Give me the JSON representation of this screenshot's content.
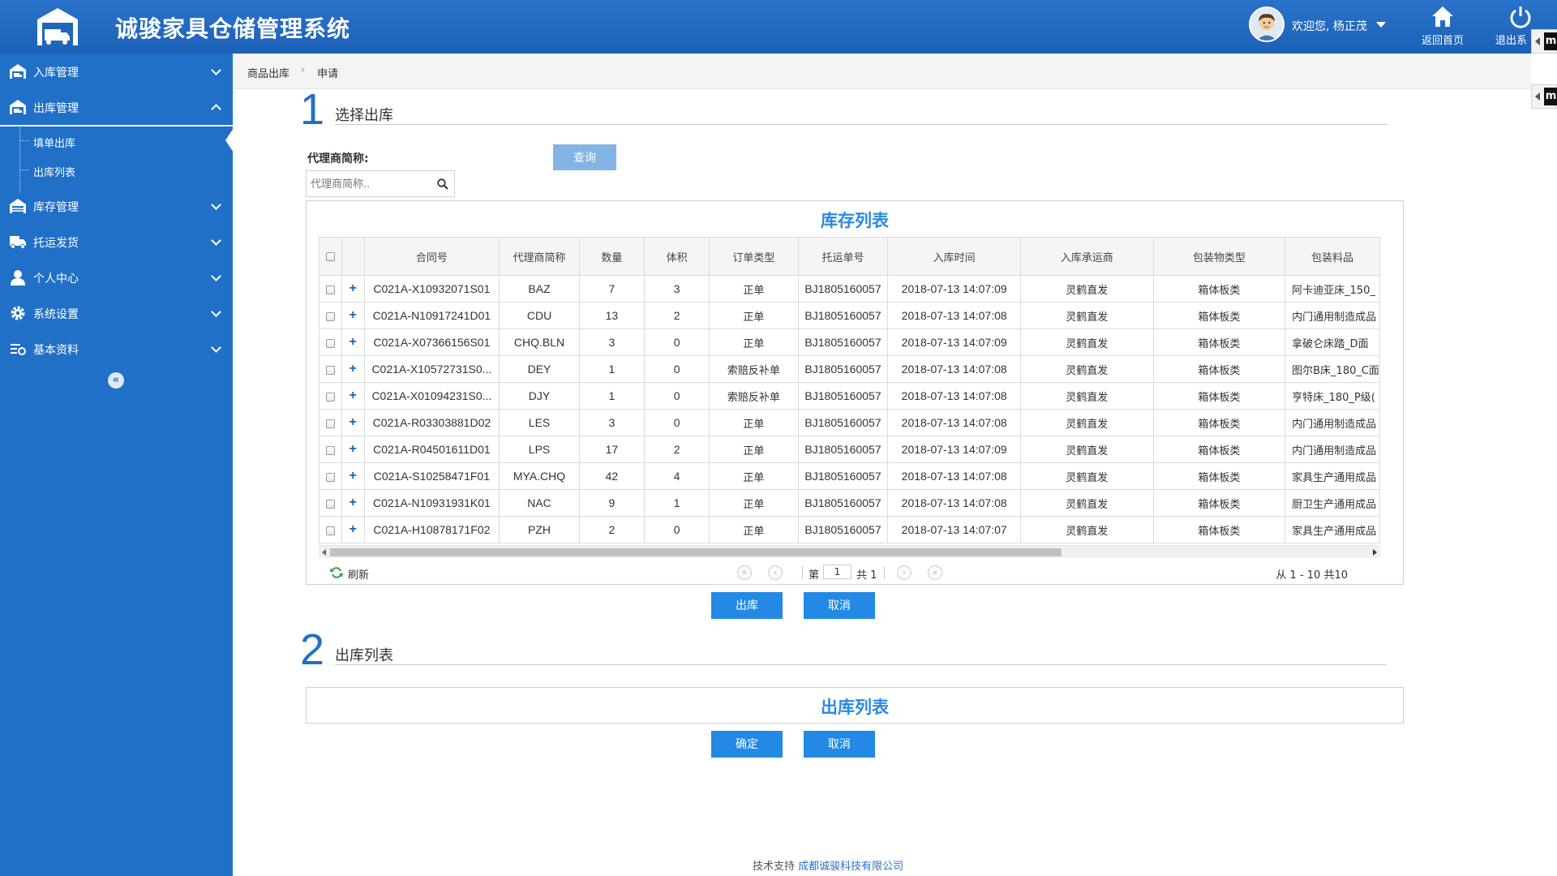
{
  "header": {
    "app_title": "诚骏家具仓储管理系统",
    "welcome_text": "欢迎您, 杨正茂",
    "home_label": "返回首页",
    "logout_label": "退出系"
  },
  "side_tabs": [
    "m",
    "m"
  ],
  "sidebar": {
    "items": [
      {
        "label": "入库管理",
        "icon": "warehouse-in-icon",
        "expanded": false
      },
      {
        "label": "出库管理",
        "icon": "warehouse-out-icon",
        "expanded": true
      },
      {
        "label": "库存管理",
        "icon": "inventory-icon",
        "expanded": false
      },
      {
        "label": "托运发货",
        "icon": "truck-icon",
        "expanded": false
      },
      {
        "label": "个人中心",
        "icon": "user-icon",
        "expanded": false
      },
      {
        "label": "系统设置",
        "icon": "gear-icon",
        "expanded": false
      },
      {
        "label": "基本资料",
        "icon": "settings-list-icon",
        "expanded": false
      }
    ],
    "sub_items": [
      "填单出库",
      "出库列表"
    ],
    "collapse_glyph": "«"
  },
  "breadcrumb": {
    "parent": "商品出库",
    "current": "申请",
    "separator": "›"
  },
  "step1": {
    "number": "1",
    "title": "选择出库"
  },
  "step2": {
    "number": "2",
    "title": "出库列表"
  },
  "search": {
    "label": "代理商简称:",
    "placeholder": "代理商简称..",
    "button_label": "查询"
  },
  "inventory_panel": {
    "title": "库存列表",
    "columns": [
      "合同号",
      "代理商简称",
      "数量",
      "体积",
      "订单类型",
      "托运单号",
      "入库时间",
      "入库承运商",
      "包装物类型",
      "包装料品"
    ],
    "rows": [
      [
        "C021A-X10932071S01",
        "BAZ",
        "7",
        "3",
        "正单",
        "BJ1805160057",
        "2018-07-13 14:07:09",
        "灵鹤直发",
        "箱体板类",
        "阿卡迪亚床_150_"
      ],
      [
        "C021A-N10917241D01",
        "CDU",
        "13",
        "2",
        "正单",
        "BJ1805160057",
        "2018-07-13 14:07:08",
        "灵鹤直发",
        "箱体板类",
        "内门通用制造成品"
      ],
      [
        "C021A-X07366156S01",
        "CHQ.BLN",
        "3",
        "0",
        "正单",
        "BJ1805160057",
        "2018-07-13 14:07:09",
        "灵鹤直发",
        "箱体板类",
        "拿破仑床踏_D面"
      ],
      [
        "C021A-X10572731S0...",
        "DEY",
        "1",
        "0",
        "索赔反补单",
        "BJ1805160057",
        "2018-07-13 14:07:08",
        "灵鹤直发",
        "箱体板类",
        "图尔B床_180_C面"
      ],
      [
        "C021A-X01094231S0...",
        "DJY",
        "1",
        "0",
        "索赔反补单",
        "BJ1805160057",
        "2018-07-13 14:07:08",
        "灵鹤直发",
        "箱体板类",
        "亨特床_180_P级("
      ],
      [
        "C021A-R03303881D02",
        "LES",
        "3",
        "0",
        "正单",
        "BJ1805160057",
        "2018-07-13 14:07:08",
        "灵鹤直发",
        "箱体板类",
        "内门通用制造成品"
      ],
      [
        "C021A-R04501611D01",
        "LPS",
        "17",
        "2",
        "正单",
        "BJ1805160057",
        "2018-07-13 14:07:09",
        "灵鹤直发",
        "箱体板类",
        "内门通用制造成品"
      ],
      [
        "C021A-S10258471F01",
        "MYA.CHQ",
        "42",
        "4",
        "正单",
        "BJ1805160057",
        "2018-07-13 14:07:08",
        "灵鹤直发",
        "箱体板类",
        "家具生产通用成品"
      ],
      [
        "C021A-N10931931K01",
        "NAC",
        "9",
        "1",
        "正单",
        "BJ1805160057",
        "2018-07-13 14:07:08",
        "灵鹤直发",
        "箱体板类",
        "厨卫生产通用成品"
      ],
      [
        "C021A-H10878171F02",
        "PZH",
        "2",
        "0",
        "正单",
        "BJ1805160057",
        "2018-07-13 14:07:07",
        "灵鹤直发",
        "箱体板类",
        "家具生产通用成品"
      ]
    ],
    "pager": {
      "refresh_label": "刷新",
      "page_label": "第",
      "page_value": "1",
      "total_label": "共 1",
      "info": "从 1 - 10 共10",
      "first": "«",
      "prev": "‹",
      "next": "›",
      "last": "»"
    }
  },
  "actions1": {
    "primary": "出库",
    "cancel": "取消"
  },
  "outbound_panel": {
    "title": "出库列表"
  },
  "actions2": {
    "primary": "确定",
    "cancel": "取消"
  },
  "footer": {
    "prefix": "技术支持",
    "company": "成都诚骏科技有限公司"
  },
  "colors": {
    "brand": "#2070c8",
    "header": "#1c61b8",
    "button": "#2389e5",
    "panel_title": "#2a8ae0"
  }
}
